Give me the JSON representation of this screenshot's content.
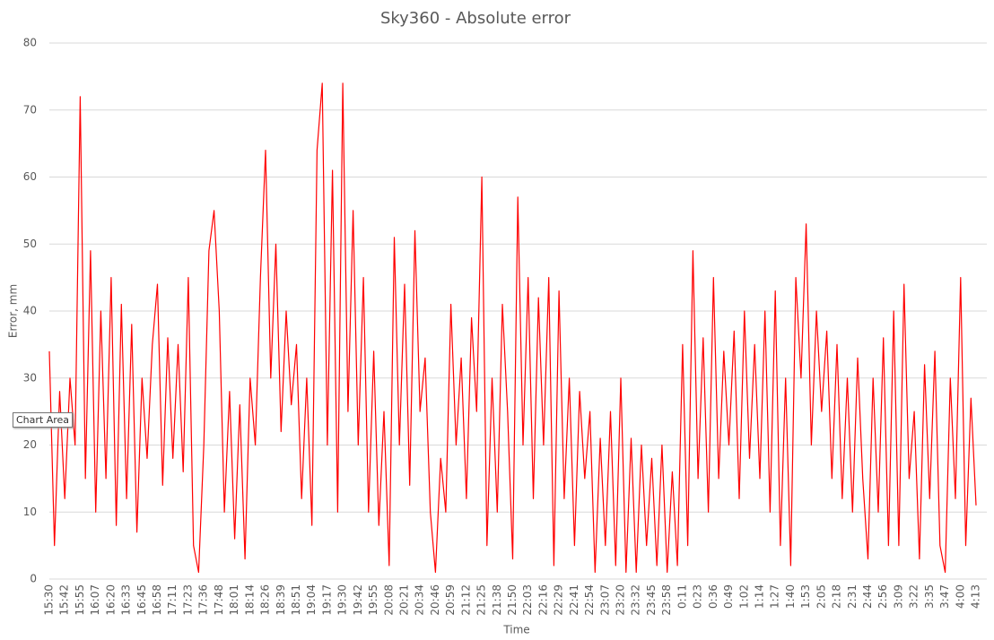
{
  "chart_data": {
    "type": "line",
    "title": "Sky360 - Absolute error",
    "x_label": "Time",
    "y_label": "Error, mm",
    "tooltip": "Chart Area",
    "categories": [
      "15:30",
      null,
      null,
      "15:42",
      null,
      null,
      "15:55",
      null,
      null,
      "16:07",
      null,
      null,
      "16:20",
      null,
      null,
      "16:33",
      null,
      null,
      "16:45",
      null,
      null,
      "16:58",
      null,
      null,
      "17:11",
      null,
      null,
      "17:23",
      null,
      null,
      "17:36",
      null,
      null,
      "17:48",
      null,
      null,
      "18:01",
      null,
      null,
      "18:14",
      null,
      null,
      "18:26",
      null,
      null,
      "18:39",
      null,
      null,
      "18:51",
      null,
      null,
      "19:04",
      null,
      null,
      "19:17",
      null,
      null,
      "19:30",
      null,
      null,
      "19:42",
      null,
      null,
      "19:55",
      null,
      null,
      "20:08",
      null,
      null,
      "20:21",
      null,
      null,
      "20:34",
      null,
      null,
      "20:46",
      null,
      null,
      "20:59",
      null,
      null,
      "21:12",
      null,
      null,
      "21:25",
      null,
      null,
      "21:38",
      null,
      null,
      "21:50",
      null,
      null,
      "22:03",
      null,
      null,
      "22:16",
      null,
      null,
      "22:29",
      null,
      null,
      "22:41",
      null,
      null,
      "22:54",
      null,
      null,
      "23:07",
      null,
      null,
      "23:20",
      null,
      null,
      "23:32",
      null,
      null,
      "23:45",
      null,
      null,
      "23:58",
      null,
      null,
      "0:11",
      null,
      null,
      "0:23",
      null,
      null,
      "0:36",
      null,
      null,
      "0:49",
      null,
      null,
      "1:02",
      null,
      null,
      "1:14",
      null,
      null,
      "1:27",
      null,
      null,
      "1:40",
      null,
      null,
      "1:53",
      null,
      null,
      "2:05",
      null,
      null,
      "2:18",
      null,
      null,
      "2:31",
      null,
      null,
      "2:44",
      null,
      null,
      "2:56",
      null,
      null,
      "3:09",
      null,
      null,
      "3:22",
      null,
      null,
      "3:35",
      null,
      null,
      "3:47",
      null,
      null,
      "4:00",
      null,
      null,
      "4:13"
    ],
    "series": [
      {
        "name": "Absolute error",
        "color": "#ff0000",
        "values": [
          34,
          5,
          28,
          12,
          30,
          20,
          72,
          15,
          49,
          10,
          40,
          15,
          45,
          8,
          41,
          12,
          38,
          7,
          30,
          18,
          35,
          44,
          14,
          36,
          18,
          35,
          16,
          45,
          5,
          1,
          20,
          49,
          55,
          40,
          10,
          28,
          6,
          26,
          3,
          30,
          20,
          45,
          64,
          30,
          50,
          22,
          40,
          26,
          35,
          12,
          30,
          8,
          64,
          74,
          20,
          61,
          10,
          74,
          25,
          55,
          20,
          45,
          10,
          34,
          8,
          25,
          2,
          51,
          20,
          44,
          14,
          52,
          25,
          33,
          10,
          1,
          18,
          10,
          41,
          20,
          33,
          12,
          39,
          25,
          60,
          5,
          30,
          10,
          41,
          25,
          3,
          57,
          20,
          45,
          12,
          42,
          20,
          45,
          2,
          43,
          12,
          30,
          5,
          28,
          15,
          25,
          1,
          21,
          5,
          25,
          2,
          30,
          1,
          21,
          1,
          20,
          5,
          18,
          2,
          20,
          1,
          16,
          2,
          35,
          5,
          49,
          15,
          36,
          10,
          45,
          15,
          34,
          20,
          37,
          12,
          40,
          18,
          35,
          15,
          40,
          10,
          43,
          5,
          30,
          2,
          45,
          30,
          53,
          20,
          40,
          25,
          37,
          15,
          35,
          12,
          30,
          10,
          33,
          15,
          3,
          30,
          10,
          36,
          5,
          40,
          5,
          44,
          15,
          25,
          3,
          32,
          12,
          34,
          5,
          1,
          30,
          12,
          45,
          5,
          27,
          11
        ]
      }
    ],
    "ylim": [
      0,
      80
    ],
    "yticks": [
      0,
      10,
      20,
      30,
      40,
      50,
      60,
      70,
      80
    ],
    "grid": true
  }
}
